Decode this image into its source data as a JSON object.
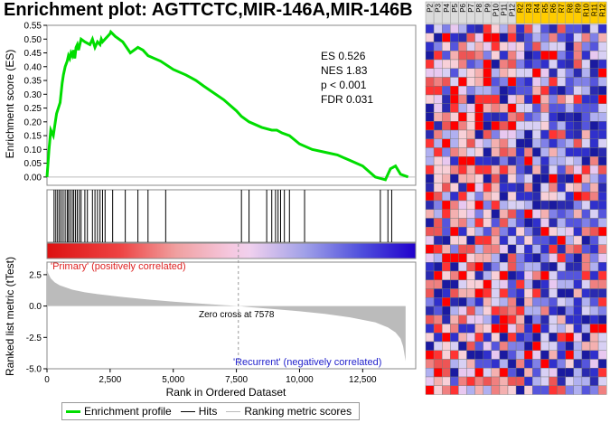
{
  "title": "Enrichment plot: AGTTCTC,MIR-146A,MIR-146B",
  "colors": {
    "enrichment": "#00dd00",
    "hits": "#000000",
    "ranking": "#bbbbbb",
    "primary_label": "#dd2222",
    "recurrent_label": "#2222cc",
    "heat_red": "#ff0000",
    "heat_blue": "#1a1aa0",
    "header_yellow": "#ffcc00"
  },
  "stats": {
    "es": "ES 0.526",
    "nes": "NES 1.83",
    "p": "p < 0.001",
    "fdr": "FDR 0.031"
  },
  "labels": {
    "primary": "'Primary' (positively correlated)",
    "recurrent": "'Recurrent' (negatively correlated)",
    "zero_cross": "Zero cross at 7578"
  },
  "legend": {
    "enrichment": "Enrichment profile",
    "hits": "Hits",
    "ranking": "Ranking metric scores"
  },
  "chart_data": [
    {
      "type": "line",
      "title": "Enrichment plot: AGTTCTC,MIR-146A,MIR-146B",
      "ylabel": "Enrichment score (ES)",
      "xlabel": "",
      "xlim": [
        0,
        14600
      ],
      "ylim": [
        -0.03,
        0.55
      ],
      "yticks": [
        0.0,
        0.05,
        0.1,
        0.15,
        0.2,
        0.25,
        0.3,
        0.35,
        0.4,
        0.45,
        0.5,
        0.55
      ],
      "ytick_labels": [
        "0.00",
        "0.05",
        "0.10",
        "0.15",
        "0.20",
        "0.25",
        "0.30",
        "0.35",
        "0.40",
        "0.45",
        "0.50",
        "0.55"
      ],
      "series": [
        {
          "name": "Enrichment profile",
          "x": [
            0,
            80,
            150,
            250,
            330,
            380,
            450,
            520,
            600,
            650,
            720,
            800,
            850,
            900,
            950,
            1000,
            1050,
            1100,
            1150,
            1200,
            1250,
            1300,
            1350,
            1500,
            1700,
            1800,
            1900,
            2000,
            2100,
            2150,
            2200,
            2300,
            2400,
            2500,
            2526,
            2700,
            3000,
            3300,
            3600,
            3800,
            4000,
            4500,
            5000,
            5500,
            5700,
            5900,
            6200,
            7000,
            7500,
            7700,
            8000,
            8500,
            8900,
            9100,
            9300,
            9600,
            10000,
            10500,
            11000,
            11500,
            12000,
            12500,
            13000,
            13400,
            13600,
            13800,
            14000,
            14300
          ],
          "y": [
            0.0,
            0.1,
            0.17,
            0.15,
            0.2,
            0.23,
            0.25,
            0.27,
            0.34,
            0.37,
            0.4,
            0.42,
            0.44,
            0.43,
            0.45,
            0.44,
            0.46,
            0.43,
            0.47,
            0.48,
            0.46,
            0.48,
            0.5,
            0.49,
            0.48,
            0.5,
            0.47,
            0.49,
            0.48,
            0.5,
            0.49,
            0.5,
            0.51,
            0.52,
            0.526,
            0.51,
            0.49,
            0.45,
            0.47,
            0.46,
            0.44,
            0.42,
            0.39,
            0.37,
            0.36,
            0.35,
            0.33,
            0.28,
            0.24,
            0.22,
            0.2,
            0.18,
            0.17,
            0.17,
            0.16,
            0.15,
            0.12,
            0.1,
            0.09,
            0.08,
            0.06,
            0.04,
            0.0,
            -0.01,
            0.03,
            0.04,
            0.01,
            0.0
          ]
        }
      ]
    },
    {
      "type": "scatter",
      "title": "",
      "series": [
        {
          "name": "Hits",
          "x": [
            280,
            350,
            420,
            490,
            560,
            640,
            720,
            800,
            850,
            920,
            1000,
            1060,
            1130,
            1200,
            1280,
            1350,
            1500,
            1600,
            1800,
            1900,
            2000,
            2100,
            2200,
            2300,
            2600,
            3100,
            3600,
            4000,
            4700,
            7700,
            8000,
            8700,
            8900,
            9050,
            9150,
            9250,
            9400,
            9600,
            10200,
            13200,
            13500,
            13650
          ]
        }
      ]
    },
    {
      "type": "area",
      "title": "",
      "ylabel": "Ranked list metric (tTest)",
      "xlabel": "Rank in Ordered Dataset",
      "xlim": [
        0,
        14600
      ],
      "ylim": [
        -5.0,
        3.5
      ],
      "yticks": [
        -5.0,
        -2.5,
        0.0,
        2.5
      ],
      "ytick_labels": [
        "-5.0",
        "-2.5",
        "0.0",
        "2.5"
      ],
      "xticks": [
        0,
        2500,
        5000,
        7500,
        10000,
        12500
      ],
      "xtick_labels": [
        "0",
        "2,500",
        "5,000",
        "7,500",
        "10,000",
        "12,500"
      ],
      "series": [
        {
          "name": "Ranking metric scores",
          "x": [
            0,
            50,
            150,
            300,
            500,
            1000,
            1500,
            2000,
            3000,
            4000,
            5000,
            6000,
            7000,
            7578,
            8000,
            9000,
            10000,
            11000,
            12000,
            13000,
            13500,
            13800,
            14000,
            14100,
            14200
          ],
          "y": [
            3.0,
            2.6,
            2.2,
            1.9,
            1.65,
            1.3,
            1.1,
            0.95,
            0.72,
            0.52,
            0.35,
            0.2,
            0.07,
            0.0,
            -0.08,
            -0.25,
            -0.42,
            -0.62,
            -0.9,
            -1.3,
            -1.7,
            -2.1,
            -2.6,
            -3.2,
            -4.4
          ]
        }
      ]
    },
    {
      "type": "heatmap",
      "title": "",
      "columns": [
        "P2",
        "P3",
        "P4",
        "P5",
        "P6",
        "P7",
        "P8",
        "P9",
        "P10",
        "P11",
        "P12",
        "R2",
        "R3",
        "R4",
        "R5",
        "R6",
        "R7",
        "R8",
        "R9",
        "R10",
        "R11",
        "R12"
      ],
      "column_groups": [
        "Primary",
        "Primary",
        "Primary",
        "Primary",
        "Primary",
        "Primary",
        "Primary",
        "Primary",
        "Primary",
        "Primary",
        "Primary",
        "Recurrent",
        "Recurrent",
        "Recurrent",
        "Recurrent",
        "Recurrent",
        "Recurrent",
        "Recurrent",
        "Recurrent",
        "Recurrent",
        "Recurrent",
        "Recurrent"
      ],
      "rows": 42
    }
  ]
}
